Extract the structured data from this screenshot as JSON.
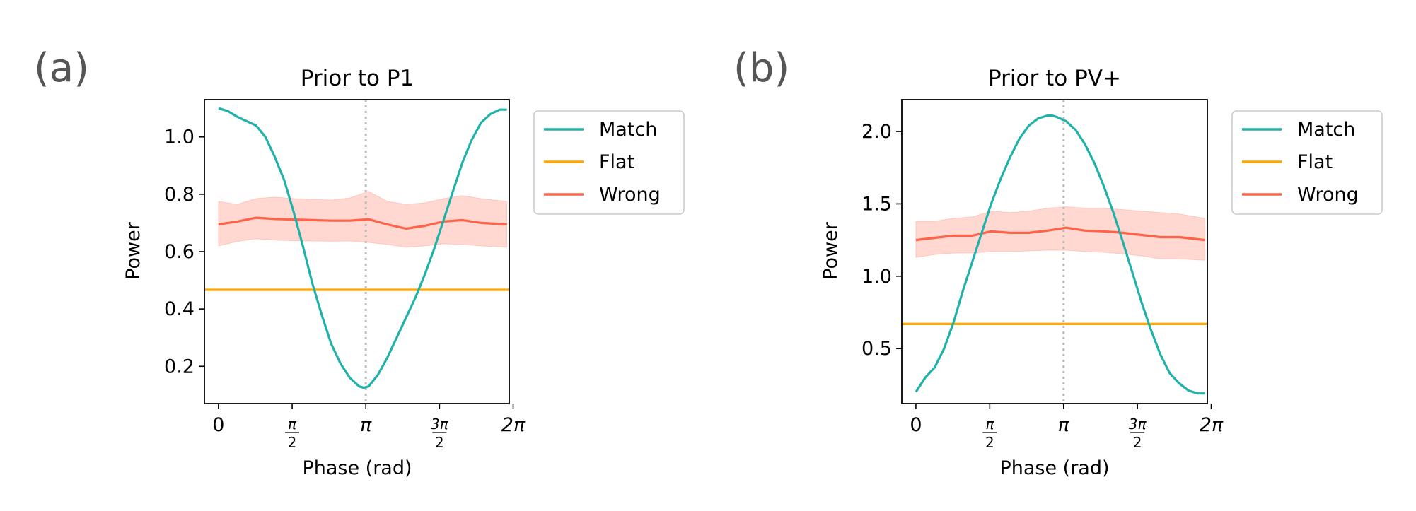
{
  "colors": {
    "match": "#20b2aa",
    "flat": "#ffa500",
    "wrong": "#ff6347",
    "wrong_band": "#ffb3a3",
    "vline": "#bbbbbb"
  },
  "chart_data": [
    {
      "panel_label": "(a)",
      "type": "line",
      "title": "Prior to P1",
      "xlabel": "Phase (rad)",
      "ylabel": "Power",
      "xlim": [
        -0.3,
        6.2
      ],
      "ylim": [
        0.07,
        1.13
      ],
      "yticks": [
        0.2,
        0.4,
        0.6,
        0.8,
        1.0
      ],
      "ytick_labels": [
        "0.2",
        "0.4",
        "0.6",
        "0.8",
        "1.0"
      ],
      "xticks": [
        {
          "value": 0,
          "num": "0",
          "den": ""
        },
        {
          "value": 1.5708,
          "num": "π",
          "den": "2"
        },
        {
          "value": 3.1416,
          "num": "π",
          "den": ""
        },
        {
          "value": 4.7124,
          "num": "3π",
          "den": "2"
        },
        {
          "value": 6.2832,
          "num": "2π",
          "den": ""
        }
      ],
      "vline_x": 3.1416,
      "legend": {
        "position": "outside-right",
        "entries": [
          "Match",
          "Flat",
          "Wrong"
        ]
      },
      "series": [
        {
          "name": "Match",
          "x": [
            0,
            0.2,
            0.4,
            0.6,
            0.8,
            1.0,
            1.2,
            1.4,
            1.6,
            1.8,
            2.0,
            2.2,
            2.4,
            2.6,
            2.8,
            3.0,
            3.1,
            3.2,
            3.4,
            3.6,
            3.8,
            4.0,
            4.2,
            4.4,
            4.6,
            4.8,
            5.0,
            5.2,
            5.4,
            5.6,
            5.8,
            6.0,
            6.15
          ],
          "y": [
            1.1,
            1.09,
            1.07,
            1.055,
            1.04,
            1.0,
            0.93,
            0.85,
            0.74,
            0.62,
            0.49,
            0.38,
            0.28,
            0.21,
            0.16,
            0.13,
            0.125,
            0.13,
            0.17,
            0.23,
            0.3,
            0.37,
            0.44,
            0.52,
            0.61,
            0.71,
            0.81,
            0.91,
            0.99,
            1.05,
            1.08,
            1.095,
            1.095
          ]
        },
        {
          "name": "Flat",
          "x": [
            -0.3,
            6.2
          ],
          "y": [
            0.467,
            0.467
          ]
        },
        {
          "name": "Wrong",
          "x": [
            0,
            0.4,
            0.8,
            1.2,
            1.6,
            2.0,
            2.4,
            2.8,
            3.2,
            3.6,
            4.0,
            4.4,
            4.8,
            5.2,
            5.6,
            6.15
          ],
          "y": [
            0.695,
            0.705,
            0.718,
            0.714,
            0.712,
            0.71,
            0.708,
            0.708,
            0.713,
            0.695,
            0.68,
            0.69,
            0.705,
            0.71,
            0.7,
            0.695
          ],
          "lower": [
            0.62,
            0.635,
            0.645,
            0.64,
            0.638,
            0.637,
            0.636,
            0.637,
            0.632,
            0.625,
            0.615,
            0.62,
            0.627,
            0.625,
            0.62,
            0.615
          ],
          "upper": [
            0.775,
            0.765,
            0.785,
            0.79,
            0.785,
            0.782,
            0.78,
            0.787,
            0.81,
            0.775,
            0.765,
            0.77,
            0.785,
            0.795,
            0.785,
            0.775
          ]
        }
      ]
    },
    {
      "panel_label": "(b)",
      "type": "line",
      "title": "Prior to PV+",
      "xlabel": "Phase (rad)",
      "ylabel": "Power",
      "xlim": [
        -0.3,
        6.2
      ],
      "ylim": [
        0.12,
        2.22
      ],
      "yticks": [
        0.5,
        1.0,
        1.5,
        2.0
      ],
      "ytick_labels": [
        "0.5",
        "1.0",
        "1.5",
        "2.0"
      ],
      "xticks": [
        {
          "value": 0,
          "num": "0",
          "den": ""
        },
        {
          "value": 1.5708,
          "num": "π",
          "den": "2"
        },
        {
          "value": 3.1416,
          "num": "π",
          "den": ""
        },
        {
          "value": 4.7124,
          "num": "3π",
          "den": "2"
        },
        {
          "value": 6.2832,
          "num": "2π",
          "den": ""
        }
      ],
      "vline_x": 3.1416,
      "legend": {
        "position": "outside-right",
        "entries": [
          "Match",
          "Flat",
          "Wrong"
        ]
      },
      "series": [
        {
          "name": "Match",
          "x": [
            0,
            0.2,
            0.4,
            0.6,
            0.8,
            1.0,
            1.2,
            1.4,
            1.6,
            1.8,
            2.0,
            2.2,
            2.4,
            2.6,
            2.8,
            2.9,
            3.0,
            3.2,
            3.4,
            3.6,
            3.8,
            4.0,
            4.2,
            4.4,
            4.6,
            4.8,
            5.0,
            5.2,
            5.4,
            5.6,
            5.8,
            6.0,
            6.15
          ],
          "y": [
            0.2,
            0.3,
            0.37,
            0.5,
            0.68,
            0.9,
            1.1,
            1.3,
            1.5,
            1.67,
            1.82,
            1.95,
            2.04,
            2.09,
            2.11,
            2.11,
            2.1,
            2.07,
            2.01,
            1.91,
            1.78,
            1.62,
            1.44,
            1.24,
            1.03,
            0.82,
            0.63,
            0.46,
            0.33,
            0.26,
            0.21,
            0.19,
            0.19
          ]
        },
        {
          "name": "Flat",
          "x": [
            -0.3,
            6.2
          ],
          "y": [
            0.67,
            0.67
          ]
        },
        {
          "name": "Wrong",
          "x": [
            0,
            0.4,
            0.8,
            1.2,
            1.6,
            2.0,
            2.4,
            2.8,
            3.2,
            3.6,
            4.0,
            4.4,
            4.8,
            5.2,
            5.6,
            6.15
          ],
          "y": [
            1.25,
            1.265,
            1.28,
            1.28,
            1.31,
            1.3,
            1.3,
            1.315,
            1.335,
            1.315,
            1.31,
            1.3,
            1.285,
            1.27,
            1.27,
            1.25
          ],
          "lower": [
            1.13,
            1.15,
            1.16,
            1.16,
            1.17,
            1.17,
            1.175,
            1.18,
            1.18,
            1.17,
            1.165,
            1.155,
            1.14,
            1.12,
            1.12,
            1.11
          ],
          "upper": [
            1.38,
            1.38,
            1.4,
            1.41,
            1.45,
            1.44,
            1.45,
            1.47,
            1.48,
            1.47,
            1.47,
            1.46,
            1.45,
            1.44,
            1.43,
            1.4
          ]
        }
      ]
    }
  ]
}
